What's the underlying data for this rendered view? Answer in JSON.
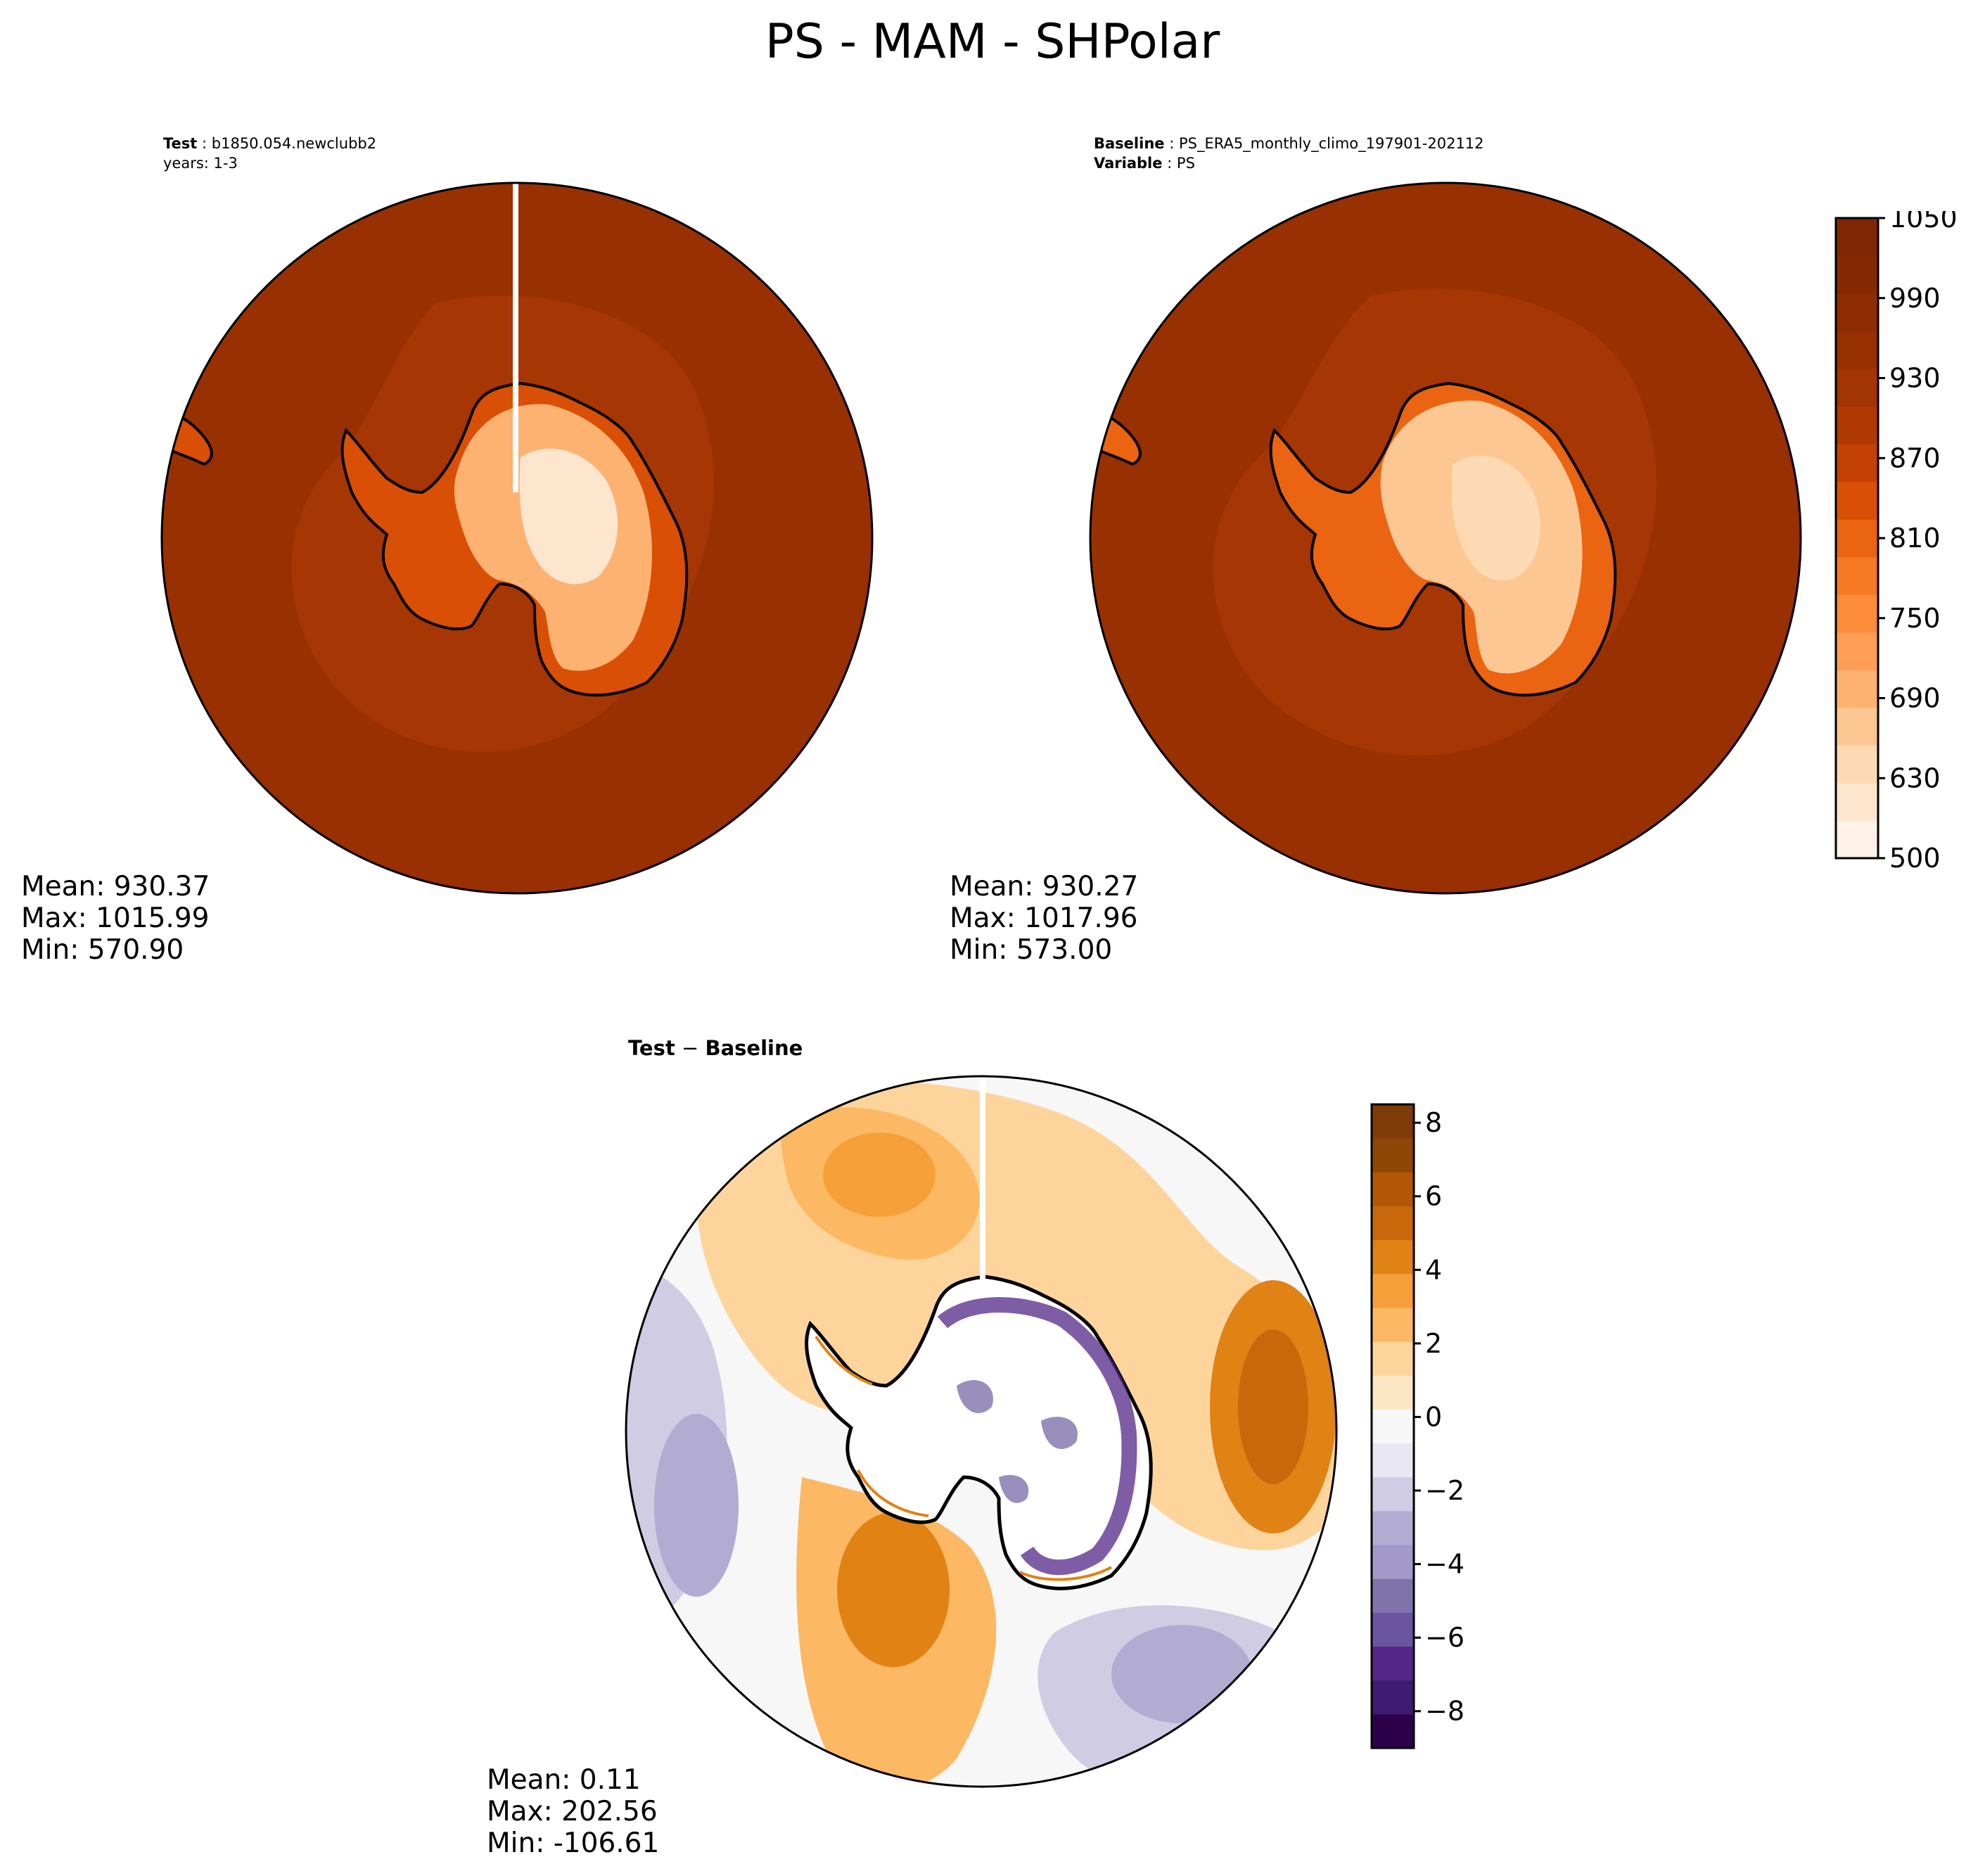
{
  "figure": {
    "title": "PS - MAM - SHPolar"
  },
  "panels": {
    "test": {
      "header_label": "Test",
      "header_value": "b1850.054.newclubb2",
      "header_line2": "years: 1-3",
      "stats": {
        "mean": "Mean: 930.37",
        "max": "Max: 1015.99",
        "min": "Min: 570.90"
      }
    },
    "baseline": {
      "header_label": "Baseline",
      "header_value": "PS_ERA5_monthly_climo_197901-202112",
      "header2_label": "Variable",
      "header2_value": "PS",
      "stats": {
        "mean": "Mean: 930.27",
        "max": "Max: 1017.96",
        "min": "Min: 573.00"
      }
    },
    "difference": {
      "title_left": "Test",
      "title_op": " − ",
      "title_right": "Baseline",
      "stats": {
        "mean": "Mean:  0.11",
        "max": "Max: 202.56",
        "min": "Min: -106.61"
      }
    }
  },
  "colorbars": {
    "field": {
      "min": 500,
      "max": 1050,
      "tick_labels": [
        "1050",
        "990",
        "930",
        "870",
        "810",
        "750",
        "690",
        "630",
        "500"
      ],
      "levels": 18,
      "colors": [
        "#fff2e6",
        "#fee6ce",
        "#fdd9b4",
        "#fdc793",
        "#fdb272",
        "#fd9e54",
        "#fc8b3a",
        "#f67924",
        "#ea6411",
        "#d94f05",
        "#c44103",
        "#b03903",
        "#a33403",
        "#983002",
        "#8d2c03",
        "#842903",
        "#7f2704"
      ]
    },
    "difference": {
      "min": -9,
      "max": 8.5,
      "ticks": [
        8,
        6,
        4,
        2,
        0,
        -2,
        -4,
        -6,
        -8
      ],
      "tick_labels": [
        "8",
        "6",
        "4",
        "2",
        "0",
        "−2",
        "−4",
        "−6",
        "−8"
      ],
      "colors": [
        "#2d004b",
        "#3f1a72",
        "#542788",
        "#6c55a0",
        "#8073ac",
        "#a399c8",
        "#b2abd2",
        "#d0cce4",
        "#e9e8f2",
        "#f7f7f7",
        "#fde6c4",
        "#fdd59c",
        "#fdb863",
        "#f6a03a",
        "#e08214",
        "#c8680b",
        "#b35806",
        "#8f4705",
        "#7f3b08"
      ]
    }
  }
}
